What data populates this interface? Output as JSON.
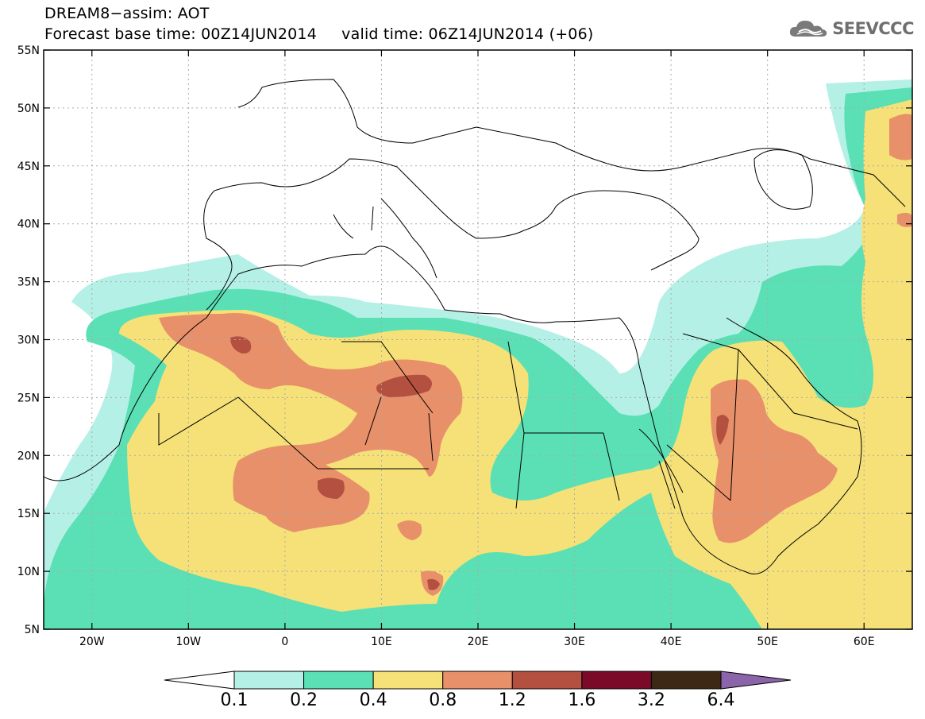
{
  "header": {
    "title_line1": "DREAM8−assim: AOT",
    "title_line2": "Forecast base time: 00Z14JUN2014     valid time: 06Z14JUN2014 (+06)",
    "logo_text": "SEEVCCC"
  },
  "map": {
    "lon_range": [
      -25,
      65
    ],
    "lat_range": [
      5,
      55
    ],
    "lat_ticks": [
      {
        "value": 55,
        "label": "55N"
      },
      {
        "value": 50,
        "label": "50N"
      },
      {
        "value": 45,
        "label": "45N"
      },
      {
        "value": 40,
        "label": "40N"
      },
      {
        "value": 35,
        "label": "35N"
      },
      {
        "value": 30,
        "label": "30N"
      },
      {
        "value": 25,
        "label": "25N"
      },
      {
        "value": 20,
        "label": "20N"
      },
      {
        "value": 15,
        "label": "15N"
      },
      {
        "value": 10,
        "label": "10N"
      },
      {
        "value": 5,
        "label": "5N"
      }
    ],
    "lon_ticks": [
      {
        "value": -20,
        "label": "20W"
      },
      {
        "value": -10,
        "label": "10W"
      },
      {
        "value": 0,
        "label": "0"
      },
      {
        "value": 10,
        "label": "10E"
      },
      {
        "value": 20,
        "label": "20E"
      },
      {
        "value": 30,
        "label": "30E"
      },
      {
        "value": 40,
        "label": "40E"
      },
      {
        "value": 50,
        "label": "50E"
      },
      {
        "value": 60,
        "label": "60E"
      }
    ],
    "colors": {
      "c01": "#b4f0e6",
      "c02": "#5ae0b4",
      "c04": "#f5e178",
      "c08": "#e8906a",
      "c12": "#b45040",
      "c16": "#7a0a28",
      "c32": "#3c2814",
      "c64": "#8c64aa"
    }
  },
  "colorbar": {
    "labels": [
      "0.1",
      "0.2",
      "0.4",
      "0.8",
      "1.2",
      "1.6",
      "3.2",
      "6.4"
    ],
    "segment_colors": [
      "#b4f0e6",
      "#5ae0b4",
      "#f5e178",
      "#e8906a",
      "#b45040",
      "#7a0a28",
      "#3c2814"
    ],
    "under_color": "#ffffff",
    "over_color": "#8c64aa"
  }
}
